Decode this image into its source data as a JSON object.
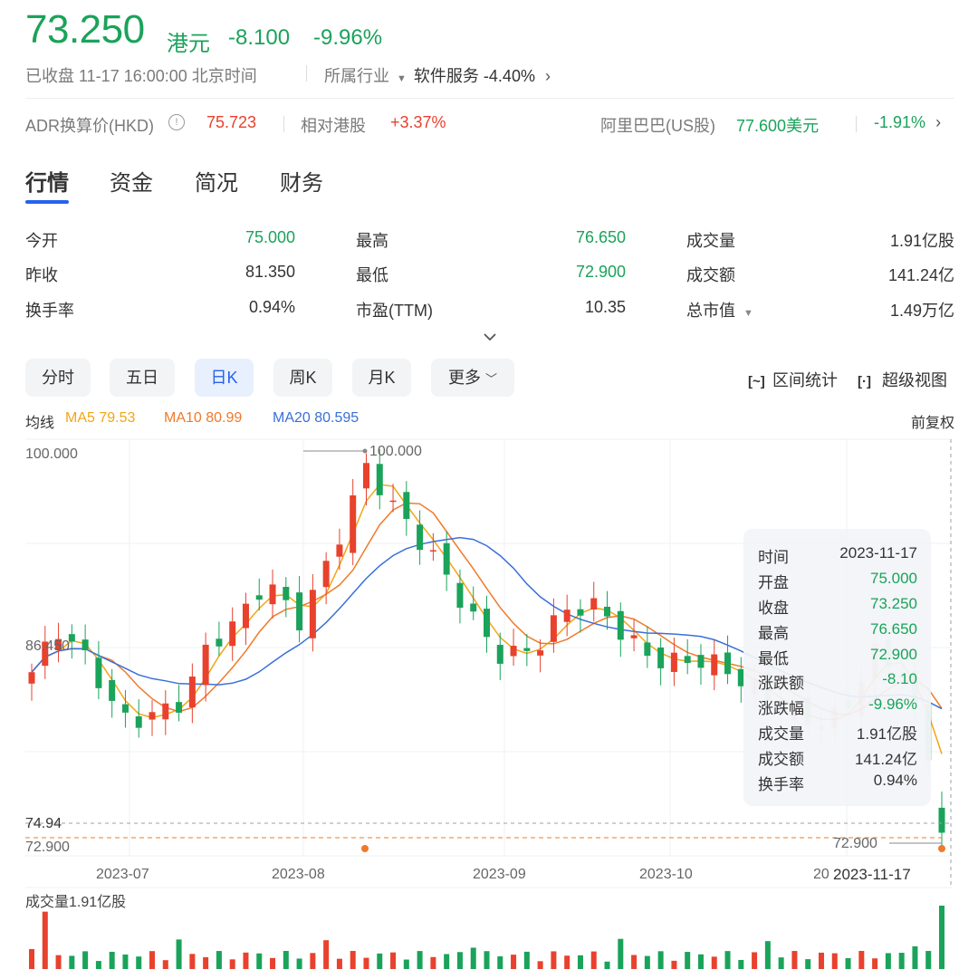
{
  "header": {
    "price": "73.250",
    "currency": "港元",
    "change": "-8.100",
    "change_pct": "-9.96%",
    "status": "已收盘 11-17 16:00:00 北京时间",
    "industry_label": "所属行业",
    "industry_name": "软件服务 -4.40%"
  },
  "adr": {
    "label": "ADR换算价(HKD)",
    "value": "75.723",
    "relative_label": "相对港股",
    "relative_value": "+3.37%",
    "us_label": "阿里巴巴(US股)",
    "us_price": "77.600美元",
    "us_change": "-1.91%"
  },
  "tabs": [
    "行情",
    "资金",
    "简况",
    "财务"
  ],
  "stats": {
    "open_label": "今开",
    "open": "75.000",
    "high_label": "最高",
    "high": "76.650",
    "volume_label": "成交量",
    "volume": "1.91亿股",
    "prev_close_label": "昨收",
    "prev_close": "81.350",
    "low_label": "最低",
    "low": "72.900",
    "amount_label": "成交额",
    "amount": "141.24亿",
    "turnover_label": "换手率",
    "turnover": "0.94%",
    "pe_label": "市盈(TTM)",
    "pe": "10.35",
    "mcap_label": "总市值",
    "mcap": "1.49万亿"
  },
  "periods": [
    "分时",
    "五日",
    "日K",
    "周K",
    "月K",
    "更多"
  ],
  "tools": {
    "range_stats": "区间统计",
    "super_view": "超级视图"
  },
  "ma_legend": {
    "label": "均线",
    "ma5": "MA5 79.53",
    "ma10": "MA10 80.99",
    "ma20": "MA20 80.595",
    "adjust": "前复权"
  },
  "colors": {
    "up": "#e8412d",
    "down": "#1aa35a",
    "ma5": "#f2a516",
    "ma10": "#ef7a2b",
    "ma20": "#3b6fd9",
    "accent": "#2563eb"
  },
  "tooltip": {
    "rows": [
      {
        "k": "时间",
        "v": "2023-11-17"
      },
      {
        "k": "开盘",
        "v": "75.000"
      },
      {
        "k": "收盘",
        "v": "73.250"
      },
      {
        "k": "最高",
        "v": "76.650"
      },
      {
        "k": "最低",
        "v": "72.900"
      },
      {
        "k": "涨跌额",
        "v": "-8.10"
      },
      {
        "k": "涨跌幅",
        "v": "-9.96%"
      },
      {
        "k": "成交量",
        "v": "1.91亿股"
      },
      {
        "k": "成交额",
        "v": "141.24亿"
      },
      {
        "k": "换手率",
        "v": "0.94%"
      }
    ]
  },
  "chart_data": {
    "type": "candlestick",
    "y_axis_labels": [
      "100.000",
      "86.450",
      "74.94",
      "72.900"
    ],
    "ylim": [
      72.9,
      100.0
    ],
    "x_ticks": [
      "2023-07",
      "2023-08",
      "2023-09",
      "2023-10",
      "20"
    ],
    "max_marker": "100.000",
    "min_marker": "72.900",
    "crosshair_price": "74.94",
    "crosshair_date": "2023-11-17",
    "volume_label": "成交量1.91亿股",
    "ma_lines": [
      "MA5",
      "MA10",
      "MA20"
    ]
  }
}
